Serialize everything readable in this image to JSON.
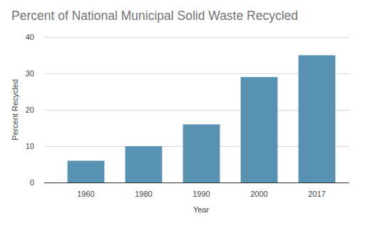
{
  "chart_data": {
    "type": "bar",
    "title": "Percent of National Municipal Solid Waste Recycled",
    "x_label": "Year",
    "y_label": "Percent Recycled",
    "categories": [
      "1960",
      "1980",
      "1990",
      "2000",
      "2017"
    ],
    "values": [
      6,
      10,
      16,
      29,
      35
    ],
    "color": "#5892b1",
    "ylim": [
      0,
      40
    ],
    "yticks": [
      0,
      10,
      20,
      30,
      40
    ],
    "grid": true
  }
}
